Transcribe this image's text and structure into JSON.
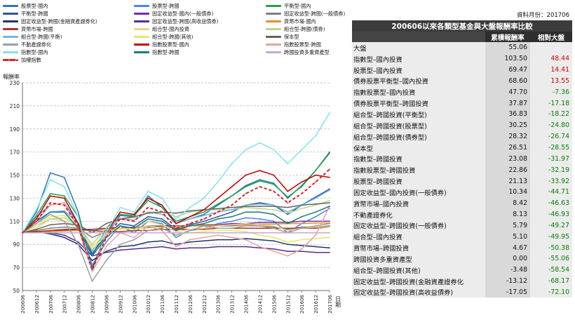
{
  "legend": [
    {
      "label": "股票型-國內",
      "color": "#2e75b6",
      "dash": false
    },
    {
      "label": "股票型-跨國",
      "color": "#4a86e8",
      "dash": false
    },
    {
      "label": "平衡型-國內",
      "color": "#22a04a",
      "dash": false
    },
    {
      "label": "平衡型-跨國",
      "color": "#2f5597",
      "dash": false
    },
    {
      "label": "固定收益型-國內(一般債券)",
      "color": "#7030a0",
      "dash": false
    },
    {
      "label": "固定收益型-跨國(一般債券)",
      "color": "#7f7f7f",
      "dash": false
    },
    {
      "label": "固定收益型-跨國(金融資產證券化)",
      "color": "#1f3864",
      "dash": false
    },
    {
      "label": "固定收益型-跨國(高收益債券)",
      "color": "#5b2c8a",
      "dash": false
    },
    {
      "label": "貨幣市場-國內",
      "color": "#e2902a",
      "dash": false
    },
    {
      "label": "貨幣市場-跨國",
      "color": "#a23a2a",
      "dash": false
    },
    {
      "label": "組合型-國內投資",
      "color": "#f2d08a",
      "dash": false
    },
    {
      "label": "組合型-跨國(債券)",
      "color": "#bcd38a",
      "dash": false
    },
    {
      "label": "組合型-跨國(平衡)",
      "color": "#6fb7e8",
      "dash": false
    },
    {
      "label": "組合型-跨國(其他)",
      "color": "#e6e66a",
      "dash": false
    },
    {
      "label": "保本型",
      "color": "#636363",
      "dash": false
    },
    {
      "label": "不動產證券化",
      "color": "#9e9e9e",
      "dash": false
    },
    {
      "label": "指數股票型-國內",
      "color": "#c00000",
      "dash": false
    },
    {
      "label": "指數股票型-跨國",
      "color": "#e8a0a0",
      "dash": false
    },
    {
      "label": "指數型-國內",
      "color": "#7fe3f0",
      "dash": false
    },
    {
      "label": "指數型-跨國",
      "color": "#1f7a7a",
      "dash": false
    },
    {
      "label": "跨國投資多重資產型",
      "color": "#c4a8d4",
      "dash": false
    },
    {
      "label": "加權指數",
      "color": "#e02020",
      "dash": true
    }
  ],
  "table": {
    "source_note": "資料月份：201706",
    "title": "200606以來各類型基金與大盤報酬率比較",
    "col1": "累積報酬率",
    "col2": "相對大盤",
    "rows": [
      {
        "name": "大盤",
        "ret": "55.06",
        "rel": ""
      },
      {
        "name": "指數型–國內投資",
        "ret": "103.50",
        "rel": "48.44"
      },
      {
        "name": "股票型–國內投資",
        "ret": "69.47",
        "rel": "14.41"
      },
      {
        "name": "債券股票平衡型–國內投資",
        "ret": "68.60",
        "rel": "13.55"
      },
      {
        "name": "指數股票型–國內投資",
        "ret": "47.70",
        "rel": "-7.36"
      },
      {
        "name": "債券股票平衡型–跨國投資",
        "ret": "37.87",
        "rel": "-17.18"
      },
      {
        "name": "組合型–跨國投資(平衡型)",
        "ret": "36.83",
        "rel": "-18.22"
      },
      {
        "name": "組合型–跨國投資(股票型)",
        "ret": "30.25",
        "rel": "-24.80"
      },
      {
        "name": "組合型–跨國投資(債券型)",
        "ret": "28.32",
        "rel": "-26.74"
      },
      {
        "name": "保本型",
        "ret": "26.51",
        "rel": "-28.55"
      },
      {
        "name": "指數型–跨國投資",
        "ret": "23.08",
        "rel": "-31.97"
      },
      {
        "name": "指數股票型–跨國投資",
        "ret": "22.86",
        "rel": "-32.19"
      },
      {
        "name": "股票型–跨國投資",
        "ret": "21.13",
        "rel": "-33.92"
      },
      {
        "name": "固定收益型–國內投資(一般債券)",
        "ret": "10.34",
        "rel": "-44.71"
      },
      {
        "name": "貨幣市場–國內投資",
        "ret": "8.42",
        "rel": "-46.63"
      },
      {
        "name": "不動產證券化",
        "ret": "8.13",
        "rel": "-46.93"
      },
      {
        "name": "固定收益型–跨國投資(一般債券)",
        "ret": "5.79",
        "rel": "-49.27"
      },
      {
        "name": "組合型–國內投資",
        "ret": "5.10",
        "rel": "-49.95"
      },
      {
        "name": "貨幣市場–跨國投資",
        "ret": "4.67",
        "rel": "-50.38"
      },
      {
        "name": "跨國投資多重資產型",
        "ret": "0.00",
        "rel": "-55.06"
      },
      {
        "name": "組合型–跨國投資(其他)",
        "ret": "-3.48",
        "rel": "-58.54"
      },
      {
        "name": "固定收益型–跨國投資(金融資產證券化",
        "ret": "-13.12",
        "rel": "-68.17"
      },
      {
        "name": "固定收益型–跨國投資(高收益債券)",
        "ret": "-17.05",
        "rel": "-72.10"
      }
    ]
  },
  "chart_data": {
    "type": "line",
    "ylabel": "報酬率",
    "xlabel": "日期",
    "ylim": [
      50,
      230
    ],
    "yticks": [
      50,
      70,
      90,
      110,
      130,
      150,
      170,
      190,
      210,
      230
    ],
    "grid": "horizontal dashed",
    "x": [
      "200606",
      "200612",
      "200706",
      "200712",
      "200806",
      "200812",
      "200906",
      "200912",
      "201006",
      "201012",
      "201106",
      "201112",
      "201206",
      "201212",
      "201306",
      "201312",
      "201406",
      "201412",
      "201506",
      "201512",
      "201606",
      "201612",
      "201706"
    ],
    "series": [
      {
        "name": "股票型-國內",
        "color": "#2e75b6",
        "values": [
          100,
          118,
          152,
          148,
          118,
          70,
          98,
          115,
          114,
          132,
          122,
          108,
          112,
          116,
          124,
          132,
          141,
          146,
          143,
          130,
          141,
          154,
          170
        ]
      },
      {
        "name": "股票型-跨國",
        "color": "#4a86e8",
        "values": [
          100,
          114,
          124,
          126,
          108,
          72,
          92,
          106,
          100,
          110,
          108,
          96,
          102,
          104,
          108,
          110,
          113,
          112,
          110,
          100,
          108,
          114,
          121
        ]
      },
      {
        "name": "平衡型-國內",
        "color": "#22a04a",
        "values": [
          100,
          115,
          134,
          132,
          114,
          80,
          104,
          116,
          115,
          128,
          122,
          110,
          114,
          118,
          125,
          132,
          140,
          145,
          142,
          131,
          140,
          154,
          169
        ]
      },
      {
        "name": "平衡型-跨國",
        "color": "#2f5597",
        "values": [
          100,
          110,
          118,
          119,
          108,
          82,
          98,
          108,
          106,
          114,
          112,
          103,
          107,
          110,
          114,
          118,
          124,
          126,
          124,
          116,
          124,
          131,
          138
        ]
      },
      {
        "name": "固定收益型-國內(一般債券)",
        "color": "#7030a0",
        "values": [
          100,
          101,
          102,
          102,
          103,
          103,
          104,
          104,
          105,
          105,
          106,
          106,
          106,
          107,
          107,
          108,
          108,
          109,
          109,
          109,
          110,
          110,
          110
        ]
      },
      {
        "name": "固定收益型-跨國(一般債券)",
        "color": "#7f7f7f",
        "values": [
          100,
          102,
          104,
          105,
          104,
          96,
          101,
          104,
          104,
          106,
          106,
          104,
          106,
          107,
          106,
          106,
          107,
          106,
          105,
          103,
          105,
          105,
          106
        ]
      },
      {
        "name": "固定收益型-跨國(金融資產證券化)",
        "color": "#1f3864",
        "values": [
          100,
          101,
          99,
          96,
          90,
          76,
          84,
          88,
          89,
          92,
          93,
          90,
          92,
          93,
          94,
          94,
          95,
          94,
          93,
          90,
          89,
          88,
          87
        ]
      },
      {
        "name": "固定收益型-跨國(高收益債券)",
        "color": "#5b2c8a",
        "values": [
          100,
          101,
          100,
          98,
          92,
          80,
          83,
          85,
          86,
          87,
          88,
          86,
          87,
          87,
          88,
          88,
          88,
          87,
          86,
          84,
          84,
          83,
          83
        ]
      },
      {
        "name": "貨幣市場-國內",
        "color": "#e2902a",
        "values": [
          100,
          100.5,
          101,
          101.5,
          102,
          102.5,
          103,
          103.5,
          104,
          104.5,
          105,
          105.5,
          106,
          106,
          106.5,
          107,
          107,
          107.5,
          107.5,
          108,
          108,
          108.5,
          108.5
        ]
      },
      {
        "name": "貨幣市場-跨國",
        "color": "#a23a2a",
        "values": [
          100,
          101,
          102,
          103,
          103,
          102,
          101,
          101,
          102,
          102,
          103,
          103,
          103,
          103,
          104,
          104,
          104,
          104,
          104,
          104,
          104,
          104,
          105
        ]
      },
      {
        "name": "組合型-國內投資",
        "color": "#f2d08a",
        "values": [
          100,
          104,
          112,
          110,
          104,
          88,
          99,
          106,
          104,
          110,
          107,
          101,
          103,
          104,
          106,
          107,
          108,
          107,
          106,
          102,
          104,
          105,
          105
        ]
      },
      {
        "name": "組合型-跨國(債券)",
        "color": "#bcd38a",
        "values": [
          100,
          106,
          112,
          113,
          106,
          90,
          104,
          112,
          113,
          118,
          118,
          114,
          118,
          120,
          120,
          120,
          122,
          121,
          120,
          117,
          121,
          124,
          128
        ]
      },
      {
        "name": "組合型-跨國(平衡)",
        "color": "#6fb7e8",
        "values": [
          100,
          108,
          118,
          119,
          108,
          84,
          102,
          112,
          111,
          118,
          116,
          108,
          112,
          115,
          118,
          120,
          124,
          125,
          124,
          118,
          124,
          130,
          137
        ]
      },
      {
        "name": "組合型-跨國(其他)",
        "color": "#e6e66a",
        "values": [
          100,
          106,
          114,
          115,
          106,
          86,
          98,
          104,
          103,
          106,
          104,
          98,
          100,
          101,
          102,
          102,
          101,
          98,
          96,
          92,
          94,
          95,
          96
        ]
      },
      {
        "name": "保本型",
        "color": "#636363",
        "values": [
          100,
          103,
          107,
          108,
          107,
          100,
          108,
          112,
          114,
          117,
          118,
          117,
          119,
          120,
          121,
          122,
          123,
          123,
          123,
          122,
          124,
          125,
          126
        ]
      },
      {
        "name": "不動產證券化",
        "color": "#9e9e9e",
        "values": [
          100,
          108,
          116,
          110,
          90,
          58,
          76,
          90,
          94,
          102,
          104,
          98,
          102,
          106,
          104,
          104,
          106,
          106,
          104,
          100,
          104,
          106,
          108
        ]
      },
      {
        "name": "指數股票型-國內",
        "color": "#c00000",
        "values": [
          100,
          112,
          132,
          130,
          108,
          68,
          100,
          118,
          116,
          130,
          124,
          108,
          114,
          120,
          130,
          140,
          150,
          154,
          150,
          136,
          144,
          150,
          148
        ]
      },
      {
        "name": "指數股票型-跨國",
        "color": "#e8a0a0",
        "values": [
          100,
          110,
          124,
          126,
          104,
          66,
          88,
          100,
          96,
          106,
          102,
          88,
          94,
          96,
          98,
          96,
          94,
          88,
          84,
          80,
          86,
          98,
          123
        ]
      },
      {
        "name": "指數型-國內",
        "color": "#7fe3f0",
        "values": [
          100,
          120,
          146,
          140,
          114,
          66,
          100,
          122,
          118,
          136,
          130,
          112,
          122,
          130,
          144,
          160,
          172,
          178,
          172,
          160,
          172,
          184,
          204
        ]
      },
      {
        "name": "指數型-跨國",
        "color": "#1f7a7a",
        "values": [
          100,
          110,
          118,
          118,
          104,
          80,
          96,
          106,
          104,
          112,
          110,
          102,
          106,
          108,
          112,
          114,
          118,
          118,
          116,
          108,
          114,
          118,
          123
        ]
      },
      {
        "name": "跨國投資多重資產型",
        "color": "#c4a8d4",
        "values": [
          100,
          100,
          100,
          100,
          100,
          100,
          100,
          100,
          100,
          100,
          100,
          100,
          100,
          100,
          100,
          100,
          100,
          100,
          100,
          100,
          100,
          100,
          100
        ]
      },
      {
        "name": "加權指數",
        "color": "#e02020",
        "dash": true,
        "values": [
          100,
          110,
          126,
          124,
          106,
          68,
          96,
          112,
          110,
          122,
          118,
          104,
          108,
          112,
          118,
          124,
          134,
          140,
          136,
          126,
          134,
          144,
          155
        ]
      }
    ]
  }
}
